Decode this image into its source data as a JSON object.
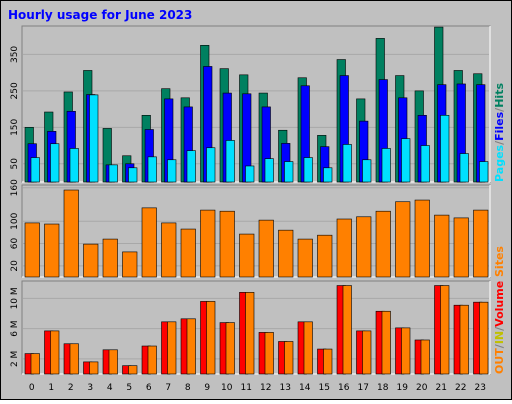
{
  "chart_data": {
    "type": "bar",
    "title": "Hourly usage for June 2023",
    "legend_separator": "/",
    "grid": true,
    "categories": [
      "0",
      "1",
      "2",
      "3",
      "4",
      "5",
      "6",
      "7",
      "8",
      "9",
      "10",
      "11",
      "12",
      "13",
      "14",
      "15",
      "16",
      "17",
      "18",
      "19",
      "20",
      "21",
      "22",
      "23"
    ],
    "panels": [
      {
        "ylim": [
          0,
          428
        ],
        "yticks": [
          50,
          150,
          250,
          350
        ],
        "series": [
          {
            "name": "Hits",
            "color": "#008060",
            "values": [
              150,
              192,
              247,
              306,
              147,
              72,
              183,
              256,
              231,
              375,
              311,
              294,
              244,
              142,
              286,
              128,
              336,
              228,
              394,
              292,
              250,
              425,
              306,
              297
            ]
          },
          {
            "name": "Files",
            "color": "#0000ff",
            "values": [
              105,
              139,
              194,
              240,
              47,
              50,
              144,
              228,
              206,
              317,
              244,
              242,
              206,
              106,
              264,
              97,
              292,
              167,
              281,
              231,
              183,
              267,
              269,
              267
            ]
          },
          {
            "name": "Pages",
            "color": "#00e0ff",
            "values": [
              67,
              105,
              92,
              239,
              47,
              39,
              69,
              61,
              86,
              94,
              114,
              44,
              64,
              56,
              67,
              39,
              103,
              61,
              92,
              119,
              100,
              183,
              78,
              56
            ]
          }
        ]
      },
      {
        "ylim": [
          0,
          165
        ],
        "yticks": [
          20,
          60,
          100,
          160
        ],
        "series": [
          {
            "name": "Sites",
            "color": "#ff8000",
            "values": [
              97,
              95,
              156,
              59,
              68,
              45,
              124,
              97,
              86,
              120,
              118,
              77,
              102,
              84,
              68,
              75,
              104,
              108,
              118,
              135,
              138,
              111,
              106,
              120
            ]
          }
        ]
      },
      {
        "ylim": [
          0,
          12.3
        ],
        "yticks": [
          {
            "value": 2,
            "label": "2 M"
          },
          {
            "value": 6,
            "label": "6 M"
          },
          {
            "value": 10,
            "label": "10 M"
          }
        ],
        "series": [
          {
            "name": "Volume",
            "color": "#ff0000",
            "values": [
              2.7,
              5.7,
              4.0,
              1.6,
              3.2,
              1.1,
              3.7,
              6.9,
              7.3,
              9.6,
              6.8,
              10.8,
              5.5,
              4.3,
              6.9,
              3.3,
              11.7,
              5.7,
              8.3,
              6.1,
              4.5,
              11.7,
              9.1,
              9.5
            ]
          },
          {
            "name": "IN",
            "color": "#c0c000",
            "values": [
              0,
              0,
              0,
              0,
              0,
              0,
              0,
              0,
              0,
              0,
              0,
              0,
              0,
              0,
              0,
              0,
              0,
              0,
              0,
              0,
              0,
              0,
              0,
              0
            ]
          },
          {
            "name": "OUT",
            "color": "#ff8000",
            "values": [
              2.7,
              5.7,
              4.0,
              1.6,
              3.2,
              1.1,
              3.7,
              6.9,
              7.3,
              9.6,
              6.8,
              10.8,
              5.5,
              4.3,
              6.9,
              3.3,
              11.7,
              5.7,
              8.3,
              6.1,
              4.5,
              11.7,
              9.1,
              9.5
            ]
          }
        ]
      }
    ]
  }
}
